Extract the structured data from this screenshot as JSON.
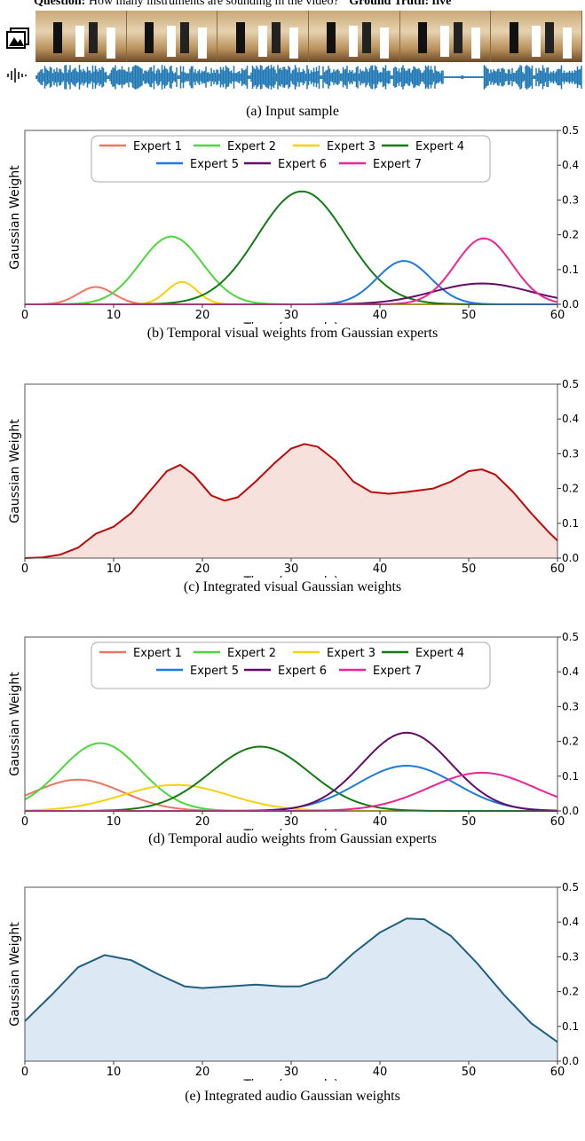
{
  "input": {
    "question_label": "Question:",
    "question": "How many instruments are sounding  in the video?",
    "gt_label": "Ground Truth:",
    "gt": "five",
    "caption": "(a) Input sample",
    "icons": [
      "image-stack-icon",
      "audio-waveform-icon"
    ],
    "waveform_color": "#1f77b4"
  },
  "chart_data": [
    {
      "id": "b",
      "type": "line",
      "caption": "(b) Temporal visual weights from Gaussian experts",
      "xlabel": "Time (seconds)",
      "ylabel": "Gaussian Weight",
      "xlim": [
        0,
        60
      ],
      "ylim": [
        0,
        0.5
      ],
      "xticks": [
        "0",
        "10",
        "20",
        "30",
        "40",
        "50",
        "60"
      ],
      "yticks": [
        "0.0",
        "0.1",
        "0.2",
        "0.3",
        "0.4",
        "0.5"
      ],
      "legend": "top-center",
      "grid": false,
      "series": [
        {
          "name": "Expert 1",
          "color": "#f07464",
          "peak": 0.05,
          "center": 8,
          "sigma": 2
        },
        {
          "name": "Expert 2",
          "color": "#4bd83a",
          "peak": 0.195,
          "center": 16.5,
          "sigma": 3.5
        },
        {
          "name": "Expert 3",
          "color": "#f5d10a",
          "peak": 0.065,
          "center": 17.7,
          "sigma": 1.7
        },
        {
          "name": "Expert 4",
          "color": "#137a13",
          "peak": 0.325,
          "center": 31.2,
          "sigma": 5
        },
        {
          "name": "Expert 5",
          "color": "#1f7ae0",
          "peak": 0.125,
          "center": 42.7,
          "sigma": 3
        },
        {
          "name": "Expert 6",
          "color": "#650a6b",
          "peak": 0.06,
          "center": 51.5,
          "sigma": 5.5
        },
        {
          "name": "Expert 7",
          "color": "#ec2594",
          "peak": 0.19,
          "center": 51.7,
          "sigma": 3.2
        }
      ]
    },
    {
      "id": "c",
      "type": "area",
      "caption": "(c) Integrated visual Gaussian weights",
      "xlabel": "Time (seconds)",
      "ylabel": "Gaussian Weight",
      "xlim": [
        0,
        60
      ],
      "ylim": [
        0,
        0.5
      ],
      "xticks": [
        "0",
        "10",
        "20",
        "30",
        "40",
        "50",
        "60"
      ],
      "yticks": [
        "0.0",
        "0.1",
        "0.2",
        "0.3",
        "0.4",
        "0.5"
      ],
      "grid": false,
      "line_color": "#bb0a0a",
      "fill_color": "#f6e1dc",
      "x": [
        0,
        2,
        4,
        6,
        8,
        10,
        12,
        14,
        16,
        17.5,
        19,
        21,
        22.5,
        24,
        26,
        28,
        30,
        31.5,
        33,
        35,
        37,
        39,
        41,
        43,
        46,
        48,
        50,
        51.5,
        53,
        55,
        57,
        59,
        60
      ],
      "y": [
        0,
        0.002,
        0.01,
        0.03,
        0.07,
        0.09,
        0.13,
        0.19,
        0.25,
        0.268,
        0.24,
        0.18,
        0.165,
        0.175,
        0.22,
        0.27,
        0.315,
        0.328,
        0.32,
        0.28,
        0.22,
        0.19,
        0.185,
        0.19,
        0.2,
        0.22,
        0.25,
        0.255,
        0.24,
        0.19,
        0.13,
        0.075,
        0.05
      ]
    },
    {
      "id": "d",
      "type": "line",
      "caption": "(d) Temporal audio weights from Gaussian experts",
      "xlabel": "Time (seconds)",
      "ylabel": "Gaussian Weight",
      "xlim": [
        0,
        60
      ],
      "ylim": [
        0,
        0.5
      ],
      "xticks": [
        "0",
        "10",
        "20",
        "30",
        "40",
        "50",
        "60"
      ],
      "yticks": [
        "0.0",
        "0.1",
        "0.2",
        "0.3",
        "0.4",
        "0.5"
      ],
      "legend": "top-center",
      "grid": false,
      "series": [
        {
          "name": "Expert 1",
          "color": "#f07464",
          "peak": 0.09,
          "center": 6,
          "sigma": 5
        },
        {
          "name": "Expert 2",
          "color": "#4bd83a",
          "peak": 0.195,
          "center": 8.5,
          "sigma": 4.5
        },
        {
          "name": "Expert 3",
          "color": "#f5d10a",
          "peak": 0.075,
          "center": 17,
          "sigma": 6
        },
        {
          "name": "Expert 4",
          "color": "#137a13",
          "peak": 0.185,
          "center": 26.5,
          "sigma": 5.5
        },
        {
          "name": "Expert 5",
          "color": "#1f7ae0",
          "peak": 0.13,
          "center": 43,
          "sigma": 5.5
        },
        {
          "name": "Expert 6",
          "color": "#650a6b",
          "peak": 0.225,
          "center": 43,
          "sigma": 5
        },
        {
          "name": "Expert 7",
          "color": "#ec2594",
          "peak": 0.11,
          "center": 51.5,
          "sigma": 6
        }
      ]
    },
    {
      "id": "e",
      "type": "area",
      "caption": "(e) Integrated audio Gaussian weights",
      "xlabel": "Time (seconds)",
      "ylabel": "Gaussian Weight",
      "xlim": [
        0,
        60
      ],
      "ylim": [
        0,
        0.5
      ],
      "xticks": [
        "0",
        "10",
        "20",
        "30",
        "40",
        "50",
        "60"
      ],
      "yticks": [
        "0.0",
        "0.1",
        "0.2",
        "0.3",
        "0.4",
        "0.5"
      ],
      "grid": false,
      "line_color": "#1f5f80",
      "fill_color": "#dde8f5",
      "x": [
        0,
        3,
        6,
        9,
        12,
        15,
        18,
        20,
        23,
        26,
        29,
        31,
        34,
        37,
        40,
        43,
        45,
        48,
        51,
        54,
        57,
        60
      ],
      "y": [
        0.115,
        0.19,
        0.27,
        0.305,
        0.29,
        0.25,
        0.215,
        0.21,
        0.215,
        0.22,
        0.215,
        0.215,
        0.24,
        0.31,
        0.37,
        0.41,
        0.408,
        0.36,
        0.28,
        0.19,
        0.11,
        0.055
      ]
    }
  ]
}
